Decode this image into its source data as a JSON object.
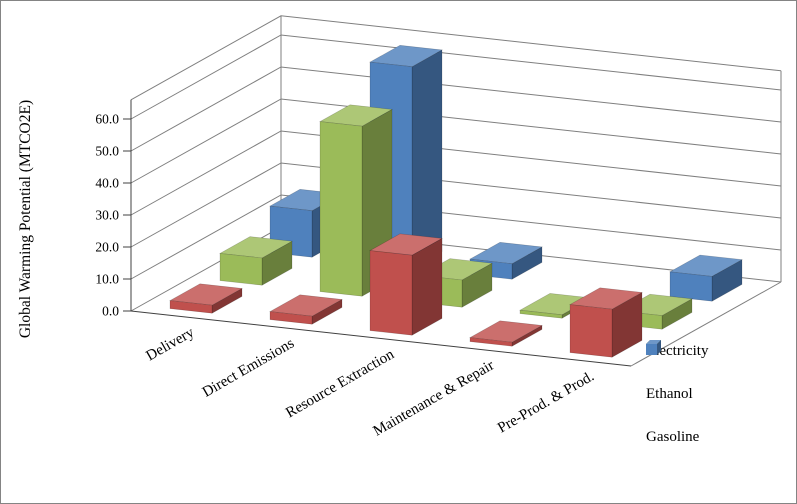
{
  "window": {
    "background": "#ffffff",
    "border_color": "#848484"
  },
  "chart_data": {
    "type": "bar",
    "projection": "3d-column",
    "title": "",
    "ylabel": "Global Warming Potential (MTCO2E)",
    "xlabel": "",
    "categories": [
      "Delivery",
      "Direct Emissions",
      "Resource Extraction",
      "Maintenance & Repair",
      "Pre-Prod. & Prod."
    ],
    "series": [
      {
        "name": "Electricity",
        "color": "#C0504D",
        "values": [
          2.0,
          2.0,
          20.0,
          1.0,
          12.0
        ]
      },
      {
        "name": "Ethanol",
        "color": "#9BBB59",
        "values": [
          8.0,
          50.0,
          8.0,
          1.0,
          4.0
        ]
      },
      {
        "name": "Gasoline",
        "color": "#4F81BD",
        "values": [
          15.0,
          65.0,
          5.0,
          0.0,
          8.0
        ]
      }
    ],
    "ylim": [
      0,
      60
    ],
    "ytick_step": 10,
    "ytick_labels": [
      "0.0",
      "10.0",
      "20.0",
      "30.0",
      "40.0",
      "50.0",
      "60.0"
    ],
    "grid": true,
    "legend_position": "right",
    "gridline_color": "#7f7f7f",
    "axis_color": "#404040"
  }
}
